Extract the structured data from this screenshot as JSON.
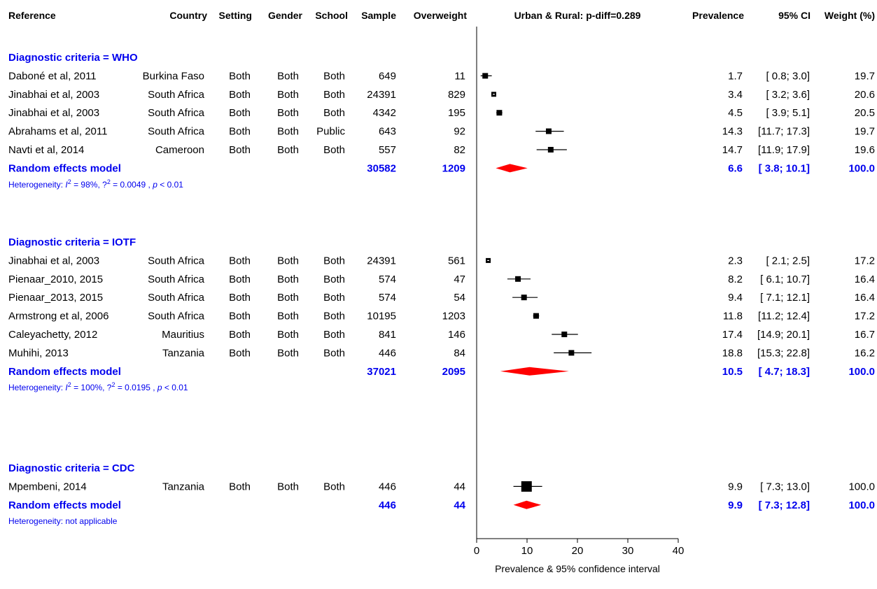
{
  "colors": {
    "blue": "#0000ee",
    "summary": "#ff0000",
    "marker": "#000000"
  },
  "headers": {
    "reference": "Reference",
    "country": "Country",
    "setting": "Setting",
    "gender": "Gender",
    "school": "School",
    "sample": "Sample",
    "overweight": "Overweight",
    "plot_title": "Urban & Rural: p-diff=0.289",
    "prevalence": "Prevalence",
    "ci": "95% CI",
    "weight": "Weight (%)"
  },
  "chart_data": {
    "type": "forest",
    "xlabel": "Prevalence & 95% confidence interval",
    "xlim": [
      0,
      40
    ],
    "xticks": [
      0,
      10,
      20,
      30,
      40
    ],
    "groups": [
      {
        "label": "Diagnostic criteria = WHO",
        "studies": [
          {
            "reference": "Daboné et al, 2011",
            "country": "Burkina Faso",
            "setting": "Both",
            "gender": "Both",
            "school": "Both",
            "sample": "649",
            "overweight": "11",
            "prevalence": 1.7,
            "ci_low": 0.8,
            "ci_high": 3.0,
            "prev_text": "1.7",
            "ci_text": "[ 0.8;  3.0]",
            "weight_text": "19.7"
          },
          {
            "reference": "Jinabhai et al, 2003",
            "country": "South Africa",
            "setting": "Both",
            "gender": "Both",
            "school": "Both",
            "sample": "24391",
            "overweight": "829",
            "prevalence": 3.4,
            "ci_low": 3.2,
            "ci_high": 3.6,
            "prev_text": "3.4",
            "ci_text": "[ 3.2;  3.6]",
            "weight_text": "20.6"
          },
          {
            "reference": "Jinabhai et al, 2003",
            "country": "South Africa",
            "setting": "Both",
            "gender": "Both",
            "school": "Both",
            "sample": "4342",
            "overweight": "195",
            "prevalence": 4.5,
            "ci_low": 3.9,
            "ci_high": 5.1,
            "prev_text": "4.5",
            "ci_text": "[ 3.9;  5.1]",
            "weight_text": "20.5"
          },
          {
            "reference": "Abrahams et al, 2011",
            "country": "South Africa",
            "setting": "Both",
            "gender": "Both",
            "school": "Public",
            "sample": "643",
            "overweight": "92",
            "prevalence": 14.3,
            "ci_low": 11.7,
            "ci_high": 17.3,
            "prev_text": "14.3",
            "ci_text": "[11.7; 17.3]",
            "weight_text": "19.7"
          },
          {
            "reference": "Navti et al, 2014",
            "country": "Cameroon",
            "setting": "Both",
            "gender": "Both",
            "school": "Both",
            "sample": "557",
            "overweight": "82",
            "prevalence": 14.7,
            "ci_low": 11.9,
            "ci_high": 17.9,
            "prev_text": "14.7",
            "ci_text": "[11.9; 17.9]",
            "weight_text": "19.6"
          }
        ],
        "summary": {
          "label": "Random effects model",
          "sample": "30582",
          "overweight": "1209",
          "prevalence": 6.6,
          "ci_low": 3.8,
          "ci_high": 10.1,
          "prev_text": "6.6",
          "ci_text": "[ 3.8; 10.1]",
          "weight_text": "100.0"
        },
        "heterogeneity": {
          "prefix": "Heterogeneity:  ",
          "i2": "I",
          "i2_rest": " = 98%, ",
          "tau_rest": " = 0.0049 , ",
          "p": "p",
          "p_rest": " < 0.01",
          "sup": "2",
          "tau": "?",
          "text": ""
        }
      },
      {
        "label": "Diagnostic criteria = IOTF",
        "studies": [
          {
            "reference": "Jinabhai et al, 2003",
            "country": "South Africa",
            "setting": "Both",
            "gender": "Both",
            "school": "Both",
            "sample": "24391",
            "overweight": "561",
            "prevalence": 2.3,
            "ci_low": 2.1,
            "ci_high": 2.5,
            "prev_text": "2.3",
            "ci_text": "[ 2.1;  2.5]",
            "weight_text": "17.2"
          },
          {
            "reference": "Pienaar_2010, 2015",
            "country": "South Africa",
            "setting": "Both",
            "gender": "Both",
            "school": "Both",
            "sample": "574",
            "overweight": "47",
            "prevalence": 8.2,
            "ci_low": 6.1,
            "ci_high": 10.7,
            "prev_text": "8.2",
            "ci_text": "[ 6.1; 10.7]",
            "weight_text": "16.4"
          },
          {
            "reference": "Pienaar_2013, 2015",
            "country": "South Africa",
            "setting": "Both",
            "gender": "Both",
            "school": "Both",
            "sample": "574",
            "overweight": "54",
            "prevalence": 9.4,
            "ci_low": 7.1,
            "ci_high": 12.1,
            "prev_text": "9.4",
            "ci_text": "[ 7.1; 12.1]",
            "weight_text": "16.4"
          },
          {
            "reference": "Armstrong et al, 2006",
            "country": "South Africa",
            "setting": "Both",
            "gender": "Both",
            "school": "Both",
            "sample": "10195",
            "overweight": "1203",
            "prevalence": 11.8,
            "ci_low": 11.2,
            "ci_high": 12.4,
            "prev_text": "11.8",
            "ci_text": "[11.2; 12.4]",
            "weight_text": "17.2"
          },
          {
            "reference": "Caleyachetty, 2012",
            "country": "Mauritius",
            "setting": "Both",
            "gender": "Both",
            "school": "Both",
            "sample": "841",
            "overweight": "146",
            "prevalence": 17.4,
            "ci_low": 14.9,
            "ci_high": 20.1,
            "prev_text": "17.4",
            "ci_text": "[14.9; 20.1]",
            "weight_text": "16.7"
          },
          {
            "reference": "Muhihi, 2013",
            "country": "Tanzania",
            "setting": "Both",
            "gender": "Both",
            "school": "Both",
            "sample": "446",
            "overweight": "84",
            "prevalence": 18.8,
            "ci_low": 15.3,
            "ci_high": 22.8,
            "prev_text": "18.8",
            "ci_text": "[15.3; 22.8]",
            "weight_text": "16.2"
          }
        ],
        "summary": {
          "label": "Random effects model",
          "sample": "37021",
          "overweight": "2095",
          "prevalence": 10.5,
          "ci_low": 4.7,
          "ci_high": 18.3,
          "prev_text": "10.5",
          "ci_text": "[ 4.7; 18.3]",
          "weight_text": "100.0"
        },
        "heterogeneity": {
          "prefix": "Heterogeneity:  ",
          "i2": "I",
          "i2_rest": " = 100%, ",
          "tau_rest": " = 0.0195 , ",
          "p": "p",
          "p_rest": " < 0.01",
          "sup": "2",
          "tau": "?",
          "text": ""
        }
      },
      {
        "label": "Diagnostic criteria = CDC",
        "studies": [
          {
            "reference": "Mpembeni, 2014",
            "country": "Tanzania",
            "setting": "Both",
            "gender": "Both",
            "school": "Both",
            "sample": "446",
            "overweight": "44",
            "prevalence": 9.9,
            "ci_low": 7.3,
            "ci_high": 13.0,
            "prev_text": "9.9",
            "ci_text": "[ 7.3; 13.0]",
            "weight_text": "100.0"
          }
        ],
        "summary": {
          "label": "Random effects model",
          "sample": "446",
          "overweight": "44",
          "prevalence": 9.9,
          "ci_low": 7.3,
          "ci_high": 12.8,
          "prev_text": "9.9",
          "ci_text": "[ 7.3; 12.8]",
          "weight_text": "100.0"
        },
        "heterogeneity": {
          "text": "Heterogeneity: not applicable"
        }
      }
    ]
  }
}
